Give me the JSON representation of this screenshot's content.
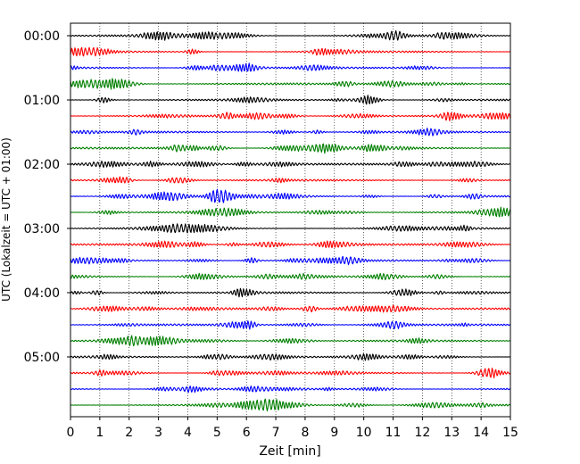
{
  "chart_data": {
    "type": "line",
    "title": "",
    "xlabel": "Zeit  [min]",
    "ylabel": "UTC (Lokalzeit = UTC + 01:00)",
    "xlim": [
      0,
      15
    ],
    "x_ticks": [
      "0",
      "1",
      "2",
      "3",
      "4",
      "5",
      "6",
      "7",
      "8",
      "9",
      "10",
      "11",
      "12",
      "13",
      "14",
      "15"
    ],
    "y_ticks": [
      "00:00",
      "01:00",
      "02:00",
      "03:00",
      "04:00",
      "05:00"
    ],
    "grid": "vertical dotted",
    "trace_interval_minutes": 15,
    "trace_count": 24,
    "trace_colors": [
      "#000000",
      "#ff0000",
      "#0000ff",
      "#008000"
    ]
  }
}
